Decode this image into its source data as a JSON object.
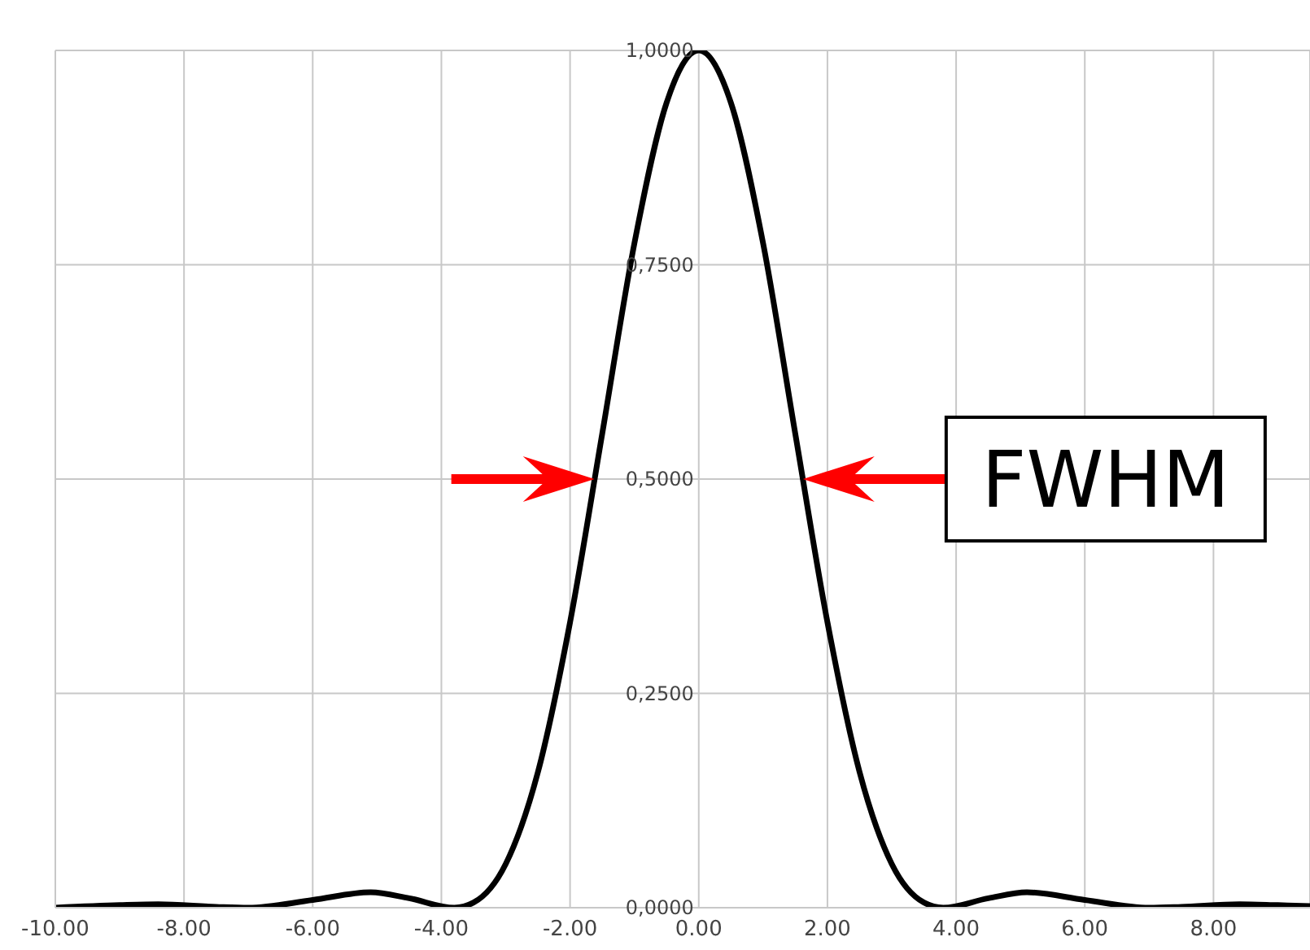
{
  "chart_data": {
    "type": "line",
    "color": "#000000",
    "x": [
      -10,
      -9,
      -8.4,
      -7.5,
      -7,
      -6,
      -5.1,
      -4.5,
      -3.8,
      -3.5,
      -3,
      -2.5,
      -2,
      -1.5,
      -1,
      -0.5,
      0,
      0.5,
      1,
      1.5,
      2,
      2.5,
      3,
      3.5,
      3.8,
      4.5,
      5.1,
      6,
      7,
      7.5,
      8.4,
      9,
      9.5
    ],
    "values": [
      0,
      0.003,
      0.004,
      0.001,
      0,
      0.009,
      0.018,
      0.011,
      0,
      0.006,
      0.051,
      0.158,
      0.333,
      0.553,
      0.775,
      0.939,
      1,
      0.939,
      0.775,
      0.553,
      0.333,
      0.158,
      0.051,
      0.006,
      0,
      0.011,
      0.018,
      0.009,
      0,
      0.001,
      0.004,
      0.003,
      0.002
    ],
    "xlim": [
      -10,
      9.5
    ],
    "xticks": [
      {
        "value": -10,
        "label": "-10.00"
      },
      {
        "value": -8,
        "label": "-8.00"
      },
      {
        "value": -6,
        "label": "-6.00"
      },
      {
        "value": -4,
        "label": "-4.00"
      },
      {
        "value": -2,
        "label": "-2.00"
      },
      {
        "value": 0,
        "label": "0.00"
      },
      {
        "value": 2,
        "label": "2.00"
      },
      {
        "value": 4,
        "label": "4.00"
      },
      {
        "value": 6,
        "label": "6.00"
      },
      {
        "value": 8,
        "label": "8.00"
      }
    ],
    "ylim": [
      0,
      1
    ],
    "yticks": [
      {
        "value": 0,
        "label": "0,0000"
      },
      {
        "value": 0.25,
        "label": "0,2500"
      },
      {
        "value": 0.5,
        "label": "0,5000"
      },
      {
        "value": 0.75,
        "label": "0,7500"
      },
      {
        "value": 1,
        "label": "1,0000"
      }
    ],
    "grid": true,
    "marker": "none",
    "line_style": "solid",
    "annotations": [
      {
        "text": "FWHM",
        "x": 1.62,
        "y": 0.5
      }
    ]
  }
}
